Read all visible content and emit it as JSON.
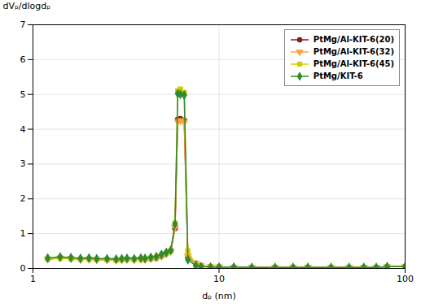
{
  "chart_data": {
    "type": "line",
    "xlabel": "dₚ (nm)",
    "ylabel": "dVₚ/dlogdₚ",
    "log": "x",
    "xlim": [
      1,
      100
    ],
    "xticks": [
      1,
      10,
      100
    ],
    "ylim": [
      0,
      7
    ],
    "yticks": [
      0,
      1,
      2,
      3,
      4,
      5,
      6,
      7
    ],
    "grid": true,
    "legend": "upper right",
    "x": [
      1.2,
      1.4,
      1.6,
      1.8,
      2.0,
      2.2,
      2.5,
      2.8,
      3.0,
      3.2,
      3.5,
      3.8,
      4.0,
      4.3,
      4.6,
      4.9,
      5.2,
      5.5,
      5.8,
      6.0,
      6.2,
      6.5,
      6.8,
      7.5,
      8.0,
      9.0,
      10.0,
      12.0,
      15.0,
      20.0,
      25.0,
      30.0,
      40.0,
      50.0,
      60.0,
      70.0,
      80.0,
      100.0
    ],
    "series": [
      {
        "name": "PtMg/Al-KIT-6(20)",
        "color": "#8B1A1A",
        "marker": "circle",
        "values": [
          0.27,
          0.3,
          0.28,
          0.26,
          0.27,
          0.25,
          0.25,
          0.24,
          0.25,
          0.26,
          0.25,
          0.27,
          0.26,
          0.28,
          0.3,
          0.35,
          0.42,
          0.5,
          1.15,
          4.28,
          4.3,
          4.25,
          0.32,
          0.15,
          0.08,
          0.05,
          0.04,
          0.03,
          0.03,
          0.03,
          0.03,
          0.03,
          0.03,
          0.03,
          0.03,
          0.03,
          0.05,
          0.05
        ]
      },
      {
        "name": "PtMg/Al-KIT-6(32)",
        "color": "#FFA040",
        "marker": "triangle-down",
        "values": [
          0.27,
          0.3,
          0.28,
          0.26,
          0.27,
          0.25,
          0.25,
          0.24,
          0.25,
          0.26,
          0.25,
          0.27,
          0.26,
          0.28,
          0.3,
          0.35,
          0.42,
          0.5,
          1.18,
          4.22,
          4.25,
          4.2,
          0.35,
          0.15,
          0.08,
          0.05,
          0.04,
          0.03,
          0.03,
          0.03,
          0.03,
          0.03,
          0.03,
          0.03,
          0.03,
          0.03,
          0.05,
          0.05
        ]
      },
      {
        "name": "PtMg/Al-KIT-6(45)",
        "color": "#CCCC00",
        "marker": "square",
        "values": [
          0.27,
          0.3,
          0.28,
          0.26,
          0.27,
          0.25,
          0.25,
          0.24,
          0.25,
          0.26,
          0.25,
          0.27,
          0.26,
          0.3,
          0.32,
          0.38,
          0.44,
          0.5,
          1.3,
          5.1,
          5.15,
          5.05,
          0.5,
          0.1,
          0.06,
          0.04,
          0.04,
          0.03,
          0.03,
          0.03,
          0.03,
          0.03,
          0.03,
          0.03,
          0.03,
          0.03,
          0.05,
          0.05
        ]
      },
      {
        "name": "PtMg/KIT-6",
        "color": "#2E8B2E",
        "marker": "diamond",
        "values": [
          0.3,
          0.33,
          0.31,
          0.29,
          0.3,
          0.28,
          0.28,
          0.27,
          0.28,
          0.29,
          0.28,
          0.3,
          0.29,
          0.32,
          0.34,
          0.4,
          0.46,
          0.52,
          1.28,
          5.02,
          5.0,
          4.98,
          0.25,
          0.08,
          0.05,
          0.04,
          0.04,
          0.04,
          0.03,
          0.03,
          0.03,
          0.03,
          0.03,
          0.03,
          0.03,
          0.03,
          0.05,
          0.05
        ]
      }
    ]
  }
}
